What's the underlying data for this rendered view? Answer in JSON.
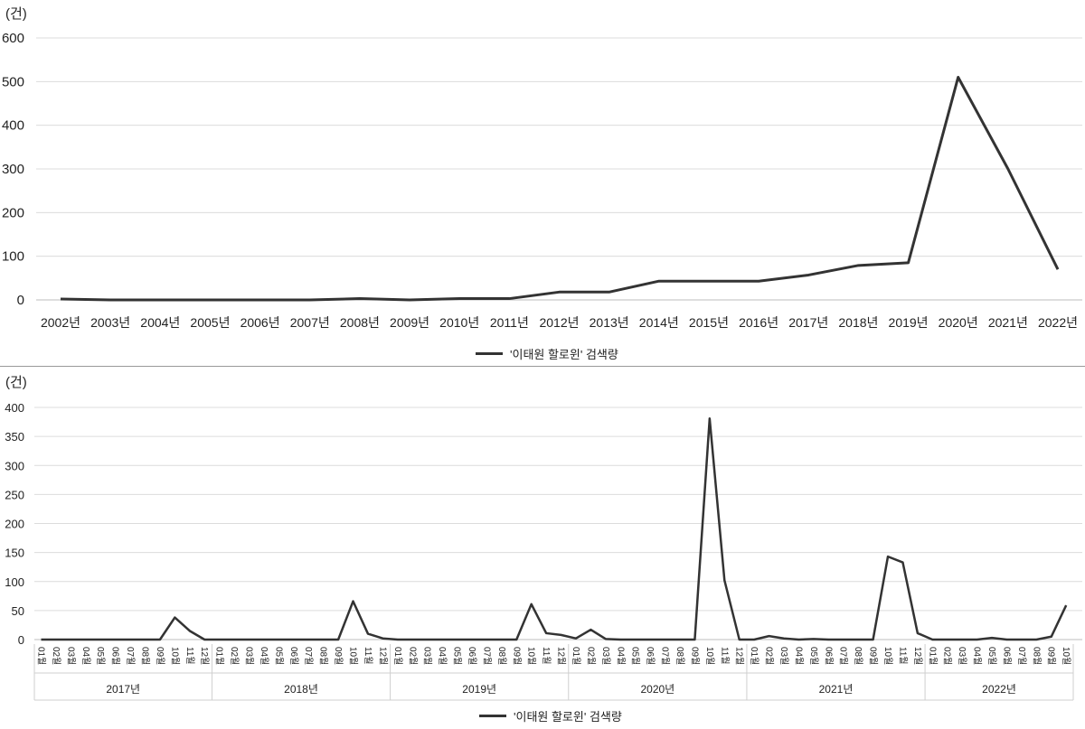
{
  "chart_data": [
    {
      "type": "line",
      "unit_label": "(건)",
      "categories": [
        "2002년",
        "2003년",
        "2004년",
        "2005년",
        "2006년",
        "2007년",
        "2008년",
        "2009년",
        "2010년",
        "2011년",
        "2012년",
        "2013년",
        "2014년",
        "2015년",
        "2016년",
        "2017년",
        "2018년",
        "2019년",
        "2020년",
        "2021년",
        "2022년"
      ],
      "series": [
        {
          "name": "'이태원 할로윈' 검색량",
          "values": [
            2,
            0,
            0,
            0,
            0,
            0,
            3,
            0,
            3,
            3,
            18,
            18,
            43,
            43,
            43,
            57,
            79,
            85,
            510,
            300,
            70
          ]
        }
      ],
      "yticks": [
        "0",
        "100",
        "200",
        "300",
        "400",
        "500",
        "600"
      ],
      "ylim": [
        0,
        600
      ],
      "grid": true,
      "legend_position": "bottom",
      "series_color": "#333333"
    },
    {
      "type": "line",
      "unit_label": "(건)",
      "year_groups": [
        "2017년",
        "2018년",
        "2019년",
        "2020년",
        "2021년",
        "2022년"
      ],
      "month_labels": [
        "01월",
        "02월",
        "03월",
        "04월",
        "05월",
        "06월",
        "07월",
        "08월",
        "09월",
        "10월",
        "11월",
        "12월"
      ],
      "last_year_months": 10,
      "series": [
        {
          "name": "'이태원 할로윈' 검색량",
          "values": [
            0,
            0,
            0,
            0,
            0,
            0,
            0,
            0,
            0,
            38,
            15,
            0,
            0,
            0,
            0,
            0,
            0,
            0,
            0,
            0,
            0,
            66,
            10,
            2,
            0,
            0,
            0,
            0,
            0,
            0,
            0,
            0,
            0,
            61,
            11,
            8,
            2,
            17,
            1,
            0,
            0,
            0,
            0,
            0,
            0,
            381,
            102,
            0,
            0,
            6,
            2,
            0,
            1,
            0,
            0,
            0,
            0,
            143,
            133,
            11,
            0,
            0,
            0,
            0,
            3,
            0,
            0,
            0,
            5,
            59
          ]
        }
      ],
      "yticks": [
        "0",
        "50",
        "100",
        "150",
        "200",
        "250",
        "300",
        "350",
        "400"
      ],
      "ylim": [
        0,
        400
      ],
      "grid": true,
      "legend_position": "bottom",
      "series_color": "#333333"
    }
  ]
}
